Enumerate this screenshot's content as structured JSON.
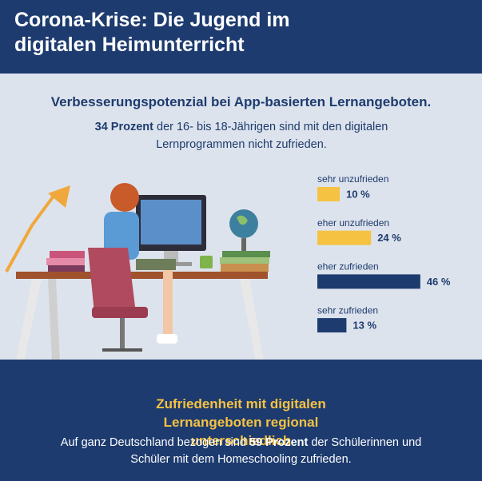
{
  "header": {
    "title": "Corona-Krise: Die Jugend im digitalen Heimunterricht"
  },
  "chart_data": {
    "type": "bar",
    "orientation": "horizontal",
    "title": "Verbesserungspotenzial bei App-basierten Lernangeboten.",
    "subtitle_bold": "34 Prozent",
    "subtitle_rest": "der 16- bis 18-Jährigen sind mit den digitalen Lernprogrammen nicht zufrieden.",
    "categories": [
      "sehr unzufrieden",
      "eher unzufrieden",
      "eher zufrieden",
      "sehr zufrieden"
    ],
    "values": [
      10,
      24,
      46,
      13
    ],
    "value_labels": [
      "10 %",
      "24 %",
      "46 %",
      "13 %"
    ],
    "colors": [
      "#f5c242",
      "#f5c242",
      "#1d3b6f",
      "#1d3b6f"
    ]
  },
  "footer": {
    "title": "Zufriedenheit mit digitalen Lernangeboten regional unterschiedlich",
    "text_before": "Auf ganz Deutschland bezogen sind",
    "text_bold": "59 Prozent",
    "text_after": "der Schülerinnen und Schüler mit dem Homeschooling zufrieden."
  }
}
